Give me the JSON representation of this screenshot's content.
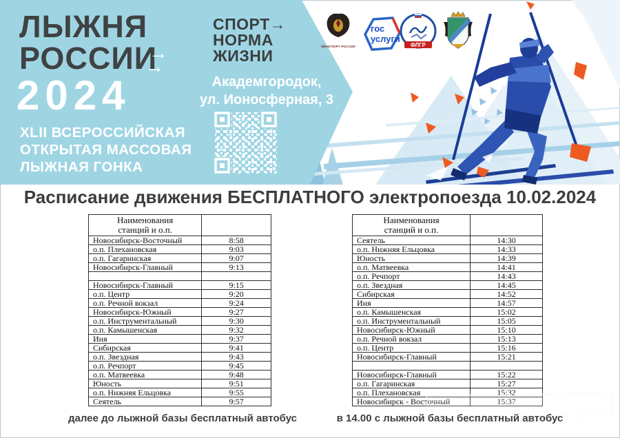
{
  "banner": {
    "title_line1": "ЛЫЖНЯ",
    "title_line2": "РОССИИ",
    "title_arrow": "→",
    "year": "2024",
    "subtitle_lines": [
      "XLII ВСЕРОССИЙСКАЯ",
      "ОТКРЫТАЯ МАССОВАЯ",
      "ЛЫЖНАЯ ГОНКА"
    ],
    "sport_norm": {
      "line1": "СПОРТ→",
      "line2": "НОРМА",
      "line3": "ЖИЗНИ"
    },
    "address": {
      "line1": "Академгородок,",
      "line2": "ул. Ионосферная, 3"
    },
    "logos": {
      "minsport_caption": "МИНСПОРТ РОССИИ",
      "gosuslugi_line1": "гос",
      "gosuslugi_line2": "услуги",
      "flgr_label": "ФЛГР"
    }
  },
  "schedule": {
    "heading": "Расписание движения БЕСПЛАТНОГО электропоезда 10.02.2024",
    "tables": [
      {
        "header_line1": "Наименования",
        "header_line2": "станций и о.п.",
        "rows": [
          [
            "Новосибирск-Восточный",
            "8:58"
          ],
          [
            "о.п. Плехановская",
            "9:03"
          ],
          [
            "о.п. Гагаринская",
            "9:07"
          ],
          [
            "Новосибирск-Главный",
            "9:13"
          ],
          [
            "",
            ""
          ],
          [
            "Новосибирск-Главный",
            "9:15"
          ],
          [
            "о.п. Центр",
            "9:20"
          ],
          [
            "о.п. Речной вокзал",
            "9:24"
          ],
          [
            "Новосибирск-Южный",
            "9:27"
          ],
          [
            "о.п. Инструментальный",
            "9:30"
          ],
          [
            "о.п. Камышенская",
            "9:32"
          ],
          [
            "Иня",
            "9:37"
          ],
          [
            "Сибирская",
            "9:41"
          ],
          [
            "о.п. Звездная",
            "9:43"
          ],
          [
            "о.п. Речпорт",
            "9:45"
          ],
          [
            "о.п. Матвеевка",
            "9:48"
          ],
          [
            "Юность",
            "9:51"
          ],
          [
            "о.п. Нижняя Ельцовка",
            "9:55"
          ],
          [
            "Сеятель",
            "9:57"
          ]
        ],
        "footer": "далее до лыжной базы бесплатный автобус"
      },
      {
        "header_line1": "Наименования",
        "header_line2": "станций и о.п.",
        "rows": [
          [
            "Сеятель",
            "14:30"
          ],
          [
            "о.п. Нижняя Ельцовка",
            "14:33"
          ],
          [
            "Юность",
            "14:39"
          ],
          [
            "о.п. Матвеевка",
            "14:41"
          ],
          [
            "о.п. Речпорт",
            "14:43"
          ],
          [
            "о.п. Звездная",
            "14:45"
          ],
          [
            "Сибирская",
            "14:52"
          ],
          [
            "Иня",
            "14:57"
          ],
          [
            "о.п. Камышенская",
            "15:02"
          ],
          [
            "о.п. Инструментальный",
            "15:05"
          ],
          [
            "Новосибирск-Южный",
            "15:10"
          ],
          [
            "о.п. Речной вокзал",
            "15:13"
          ],
          [
            "о.п. Центр",
            "15:16"
          ],
          [
            "Новосибирск-Главный",
            "15:21"
          ],
          [
            "",
            ""
          ],
          [
            "Новосибирск-Главный",
            "15:22"
          ],
          [
            "о.п. Гагаринская",
            "15:27"
          ],
          [
            "о.п. Плехановская",
            "15:32"
          ],
          [
            "Новосибирск - Восточный",
            "15:37"
          ]
        ],
        "footer": "в 14.00 с лыжной базы бесплатный автобус"
      }
    ]
  },
  "colors": {
    "banner_blue": "#9fd5e3",
    "dark_text": "#3b3d3e",
    "skier_blue": "#2d55b5",
    "accent_orange": "#ee5a21"
  }
}
